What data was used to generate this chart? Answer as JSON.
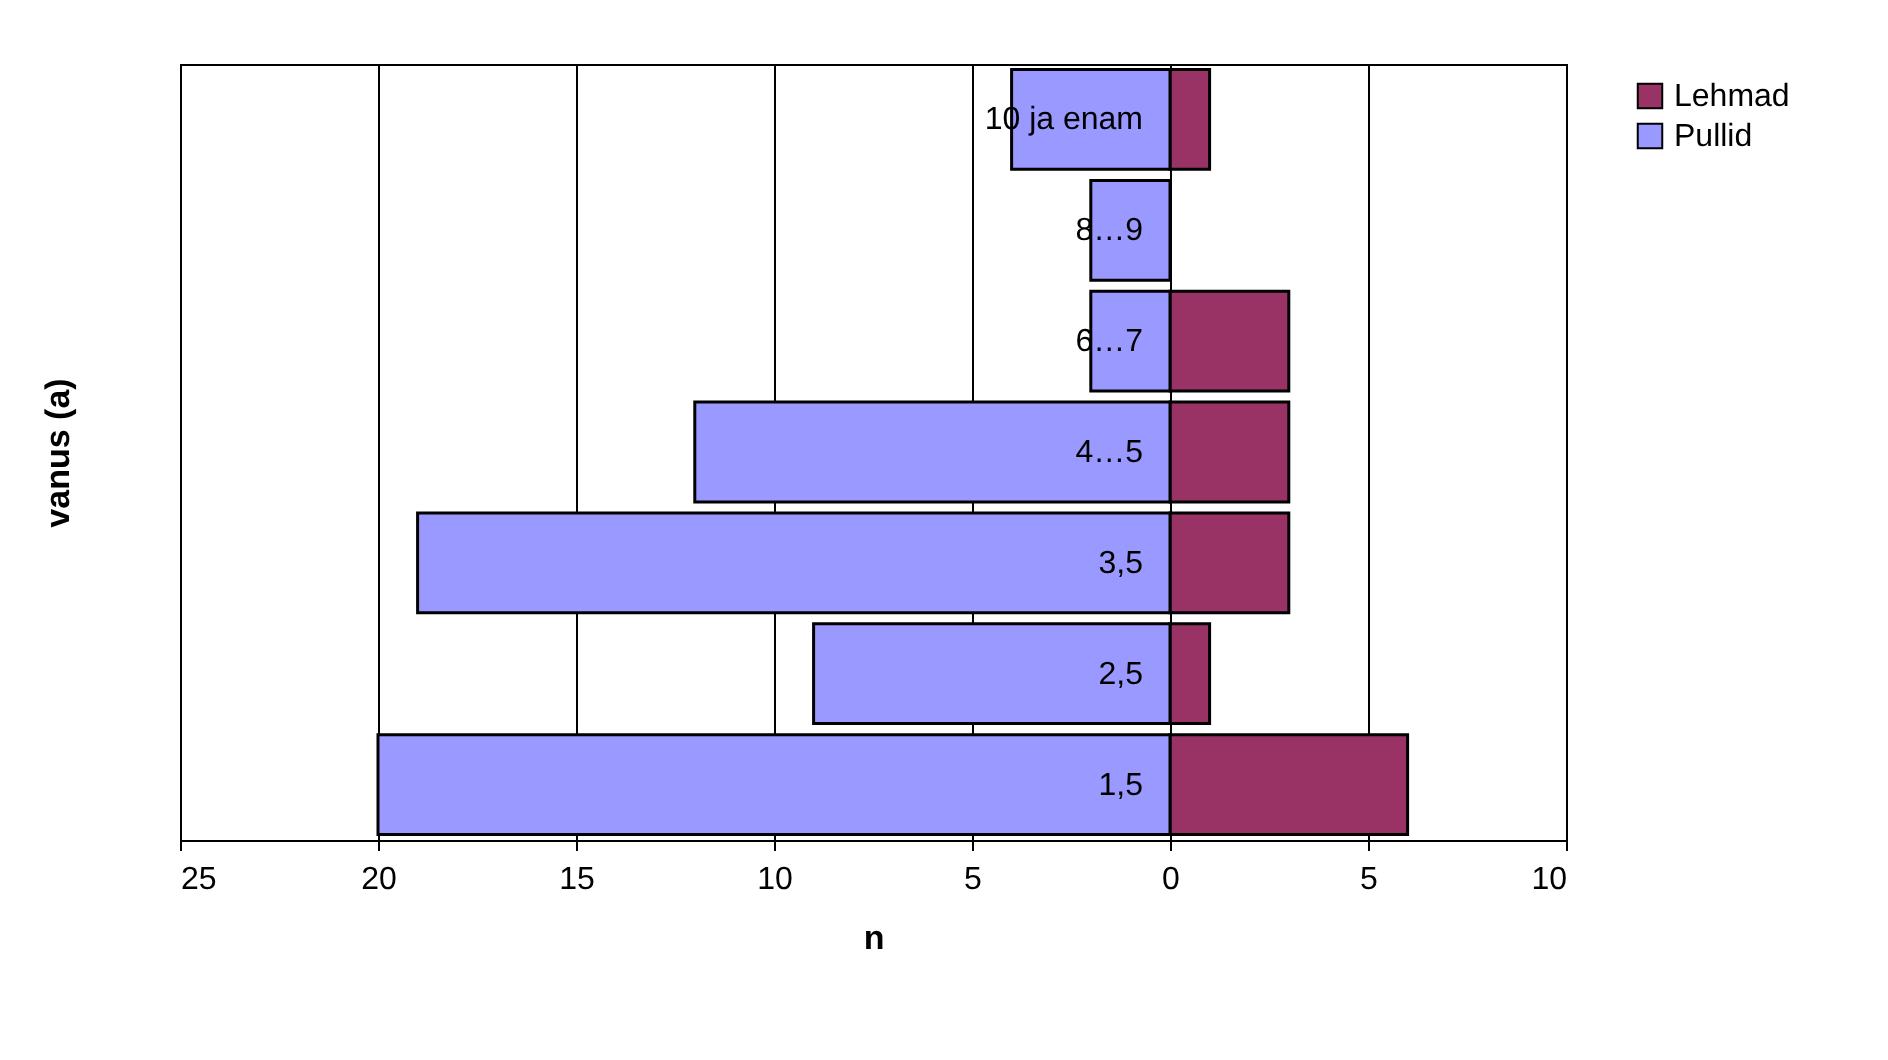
{
  "chart_data": {
    "type": "bar",
    "orientation": "horizontal",
    "stacked": true,
    "categories": [
      "10 ja enam",
      "8…9",
      "6…7",
      "4…5",
      "3,5",
      "2,5",
      "1,5"
    ],
    "series": [
      {
        "name": "Lehmad",
        "color": "#993366",
        "values": [
          1,
          0,
          3,
          3,
          3,
          1,
          6
        ]
      },
      {
        "name": "Pullid",
        "color": "#9999ff",
        "values": [
          -4,
          -2,
          -2,
          -12,
          -19,
          -9,
          -20
        ]
      }
    ],
    "xlim": [
      -25,
      10
    ],
    "xticks": [
      {
        "value": -25,
        "label": "25"
      },
      {
        "value": -20,
        "label": "20"
      },
      {
        "value": -15,
        "label": "15"
      },
      {
        "value": -10,
        "label": "10"
      },
      {
        "value": -5,
        "label": "5"
      },
      0,
      5,
      10
    ],
    "xlabel": "n",
    "ylabel": "vanus (a)",
    "grid": "x",
    "legend": "right"
  }
}
